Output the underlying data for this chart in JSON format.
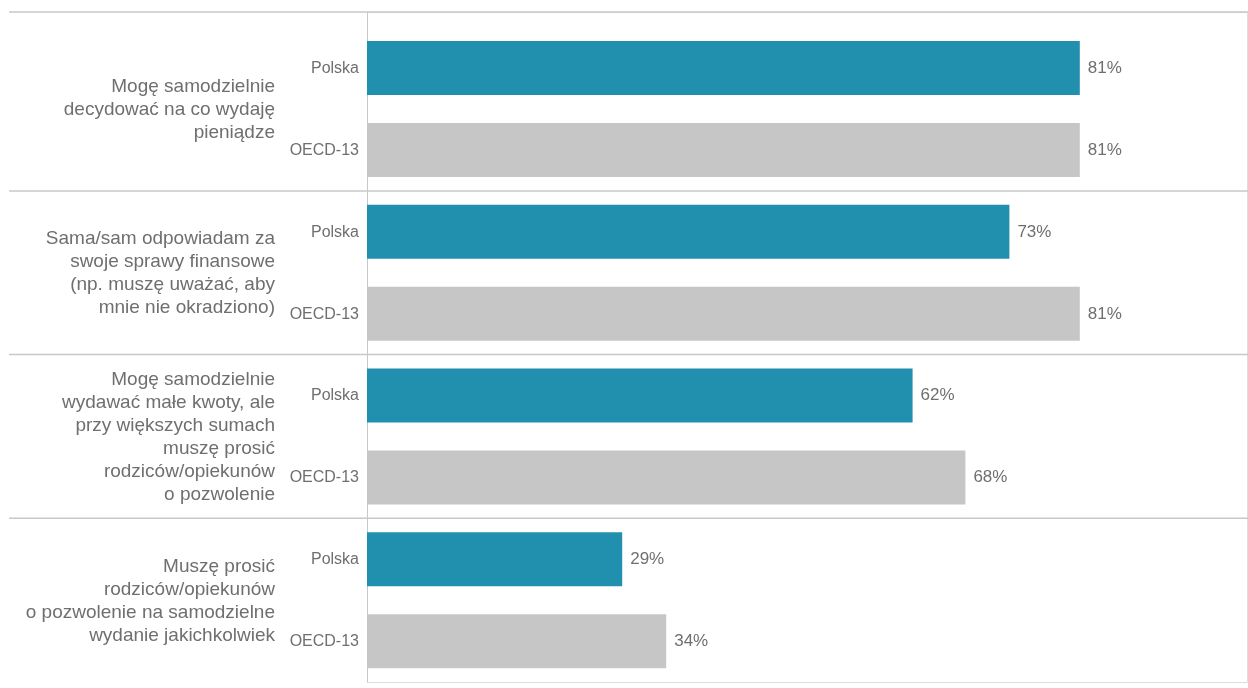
{
  "chart_data": {
    "type": "bar",
    "orientation": "horizontal",
    "categories": [
      "Mogę samodzielnie\ndecydować na co wydaję\npieniądze",
      "Sama/sam odpowiadam za\nswoje sprawy finansowe\n(np. muszę uważać, aby\nmnie nie okradziono)",
      "Mogę samodzielnie\nwydawać małe kwoty, ale\nprzy większych sumach\nmuszę prosić\nrodziców/opiekunów\no pozwolenie",
      "Muszę prosić\nrodziców/opiekunów\no pozwolenie na samodzielne\nwydanie jakichkolwiek"
    ],
    "series": [
      {
        "name": "Polska",
        "color": "#2190ae",
        "values": [
          81,
          73,
          62,
          29
        ],
        "value_labels": [
          "81%",
          "73%",
          "62%",
          "29%"
        ]
      },
      {
        "name": "OECD-13",
        "color": "#c6c6c6",
        "values": [
          81,
          81,
          68,
          34
        ],
        "value_labels": [
          "81%",
          "81%",
          "68%",
          "34%"
        ]
      }
    ],
    "xlim": [
      0,
      100
    ],
    "grid": "y",
    "tick_labels": "y"
  }
}
